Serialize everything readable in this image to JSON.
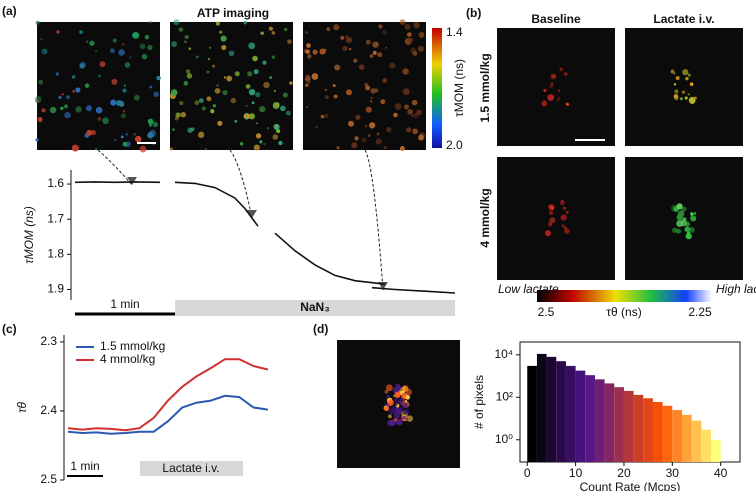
{
  "panel_labels": [
    "(a)",
    "(b)",
    "(c)",
    "(d)"
  ],
  "panel_a": {
    "title": "ATP imaging",
    "colorbar": {
      "label": "τMOM (ns)",
      "top": "1.4",
      "bottom": "2.0"
    }
  },
  "panel_b": {
    "columns": [
      "Baseline",
      "Lactate i.v."
    ],
    "rows": [
      "1.5 mmol/kg",
      "4 mmol/kg"
    ],
    "colorbar": {
      "low_text": "Low lactate",
      "high_text": "High lactate",
      "left": "2.5",
      "label": "τθ (ns)",
      "right": "2.25"
    }
  },
  "chart_data": [
    {
      "type": "line",
      "ylabel": "τMOM (ns)",
      "color": "#111111",
      "y_inverted": true,
      "x": [
        0,
        0.2,
        0.4,
        0.6,
        0.85,
        null,
        1.0,
        1.2,
        1.4,
        1.6,
        1.7,
        1.83,
        null,
        2.0,
        2.2,
        2.4,
        2.6,
        2.8,
        3.1,
        null,
        2.97,
        3.2,
        3.5,
        3.8
      ],
      "values": [
        1.595,
        1.594,
        1.595,
        1.594,
        1.595,
        null,
        1.595,
        1.598,
        1.61,
        1.64,
        1.67,
        1.72,
        null,
        1.74,
        1.79,
        1.83,
        1.86,
        1.875,
        1.885,
        null,
        1.895,
        1.9,
        1.905,
        1.91
      ],
      "xlim": [
        0,
        3.8
      ],
      "ylim": [
        1.56,
        1.93
      ],
      "yticks": [
        1.6,
        1.7,
        1.8,
        1.9
      ],
      "scale_bar": "1 min",
      "treatment": "NaN₃"
    },
    {
      "type": "line",
      "ylabel": "τθ",
      "y_inverted": true,
      "x": [
        0,
        0.4,
        0.8,
        1.2,
        1.6,
        2.0,
        2.4,
        2.8,
        3.2,
        3.6,
        4.0,
        4.4,
        4.8,
        5.2,
        5.6
      ],
      "series": [
        {
          "name": "1.5 mmol/kg",
          "color": "#2b59b0",
          "values": [
            2.43,
            2.432,
            2.431,
            2.433,
            2.432,
            2.43,
            2.43,
            2.415,
            2.395,
            2.388,
            2.385,
            2.378,
            2.38,
            2.395,
            2.398
          ]
        },
        {
          "name": "4 mmol/kg",
          "color": "#d03030",
          "values": [
            2.425,
            2.427,
            2.425,
            2.426,
            2.428,
            2.425,
            2.41,
            2.385,
            2.365,
            2.35,
            2.338,
            2.325,
            2.325,
            2.335,
            2.34
          ]
        }
      ],
      "xlim": [
        0,
        5.8
      ],
      "ylim": [
        2.29,
        2.5
      ],
      "yticks": [
        2.3,
        2.4,
        2.5
      ],
      "scale_bar": "1 min",
      "treatment": "Lactate i.v."
    },
    {
      "type": "histogram",
      "xlabel": "Count Rate (Mcps)",
      "ylabel": "# of pixels",
      "log_y": true,
      "bins": [
        0,
        2,
        4,
        6,
        8,
        10,
        12,
        14,
        16,
        18,
        20,
        22,
        24,
        26,
        28,
        30,
        32,
        34,
        36,
        38,
        40
      ],
      "counts": [
        3000,
        11000,
        8000,
        5000,
        3000,
        1800,
        1100,
        700,
        450,
        300,
        200,
        130,
        90,
        60,
        40,
        25,
        15,
        8,
        3,
        1
      ],
      "xlim": [
        -1.5,
        44
      ],
      "ylim": [
        0.09,
        40000
      ],
      "xticks": [
        0,
        10,
        20,
        30,
        40
      ],
      "yticks": [
        {
          "value": 1,
          "label": "10⁰"
        },
        {
          "value": 100,
          "label": "10²"
        },
        {
          "value": 10000,
          "label": "10⁴"
        }
      ]
    }
  ]
}
